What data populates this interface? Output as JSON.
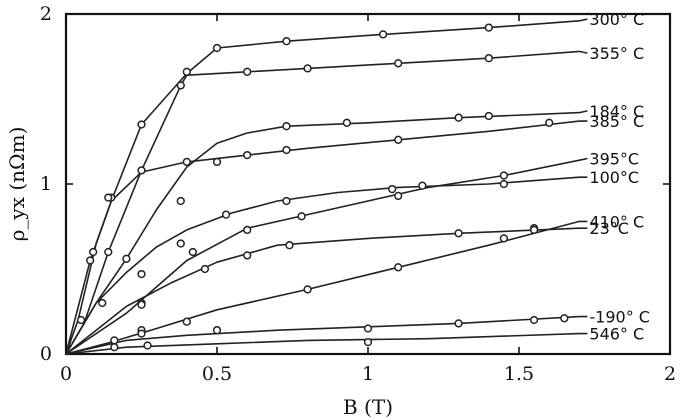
{
  "chart_data": {
    "type": "line",
    "title": "",
    "xlabel": "B (T)",
    "ylabel": "ρ_yx (nΩm)",
    "xlim": [
      0,
      2
    ],
    "ylim": [
      0,
      2
    ],
    "xticks": [
      {
        "value": 0,
        "label": "0"
      },
      {
        "value": 0.5,
        "label": "0.5"
      },
      {
        "value": 1,
        "label": "1"
      },
      {
        "value": 1.5,
        "label": "1.5"
      },
      {
        "value": 2,
        "label": "2"
      }
    ],
    "yticks": [
      {
        "value": 0,
        "label": "0"
      },
      {
        "value": 1,
        "label": "1"
      },
      {
        "value": 2,
        "label": "2"
      }
    ],
    "grid": false,
    "legend": "inline labels at right end of curves",
    "series": [
      {
        "name": "300° C",
        "label_y": 1.97,
        "points": [
          [
            0,
            0
          ],
          [
            0.08,
            0.55
          ],
          [
            0.15,
            0.9
          ],
          [
            0.25,
            1.35
          ],
          [
            0.4,
            1.65
          ],
          [
            0.5,
            1.8
          ],
          [
            0.73,
            1.84
          ],
          [
            1.05,
            1.88
          ],
          [
            1.4,
            1.92
          ],
          [
            1.7,
            1.96
          ]
        ],
        "markers": [
          [
            0.08,
            0.55
          ],
          [
            0.15,
            0.92
          ],
          [
            0.25,
            1.35
          ],
          [
            0.5,
            1.8
          ],
          [
            0.73,
            1.84
          ],
          [
            1.05,
            1.88
          ],
          [
            1.4,
            1.92
          ]
        ]
      },
      {
        "name": "355° C",
        "label_y": 1.77,
        "points": [
          [
            0,
            0
          ],
          [
            0.06,
            0.18
          ],
          [
            0.14,
            0.6
          ],
          [
            0.25,
            1.08
          ],
          [
            0.38,
            1.58
          ],
          [
            0.4,
            1.64
          ],
          [
            0.6,
            1.66
          ],
          [
            0.8,
            1.68
          ],
          [
            1.1,
            1.71
          ],
          [
            1.4,
            1.74
          ],
          [
            1.7,
            1.78
          ]
        ],
        "markers": [
          [
            0.14,
            0.6
          ],
          [
            0.25,
            1.08
          ],
          [
            0.38,
            1.58
          ],
          [
            0.4,
            1.66
          ],
          [
            0.6,
            1.66
          ],
          [
            0.8,
            1.68
          ],
          [
            1.1,
            1.71
          ],
          [
            1.4,
            1.74
          ]
        ]
      },
      {
        "name": "184° C",
        "label_y": 1.43,
        "points": [
          [
            0,
            0
          ],
          [
            0.1,
            0.3
          ],
          [
            0.2,
            0.56
          ],
          [
            0.3,
            0.85
          ],
          [
            0.4,
            1.1
          ],
          [
            0.5,
            1.24
          ],
          [
            0.6,
            1.3
          ],
          [
            0.73,
            1.34
          ],
          [
            1.0,
            1.36
          ],
          [
            1.3,
            1.39
          ],
          [
            1.7,
            1.42
          ]
        ],
        "markers": [
          [
            0.12,
            0.3
          ],
          [
            0.2,
            0.56
          ],
          [
            0.38,
            0.9
          ],
          [
            0.5,
            1.13
          ],
          [
            0.73,
            1.34
          ],
          [
            0.93,
            1.36
          ],
          [
            1.3,
            1.39
          ],
          [
            1.4,
            1.4
          ]
        ]
      },
      {
        "name": "385° C",
        "label_y": 1.37,
        "points": [
          [
            0,
            0
          ],
          [
            0.04,
            0.2
          ],
          [
            0.1,
            0.65
          ],
          [
            0.15,
            0.9
          ],
          [
            0.25,
            1.07
          ],
          [
            0.4,
            1.13
          ],
          [
            0.6,
            1.17
          ],
          [
            0.8,
            1.21
          ],
          [
            1.1,
            1.26
          ],
          [
            1.4,
            1.31
          ],
          [
            1.6,
            1.35
          ],
          [
            1.7,
            1.37
          ]
        ],
        "markers": [
          [
            0.05,
            0.2
          ],
          [
            0.09,
            0.6
          ],
          [
            0.14,
            0.92
          ],
          [
            0.4,
            1.13
          ],
          [
            0.6,
            1.17
          ],
          [
            0.73,
            1.2
          ],
          [
            1.1,
            1.26
          ],
          [
            1.6,
            1.36
          ]
        ]
      },
      {
        "name": "395°C",
        "label_y": 1.15,
        "points": [
          [
            0,
            0
          ],
          [
            0.2,
            0.24
          ],
          [
            0.4,
            0.55
          ],
          [
            0.6,
            0.74
          ],
          [
            0.8,
            0.82
          ],
          [
            1.0,
            0.9
          ],
          [
            1.2,
            0.98
          ],
          [
            1.45,
            1.05
          ],
          [
            1.7,
            1.14
          ]
        ],
        "markers": [
          [
            0.25,
            0.3
          ],
          [
            0.42,
            0.6
          ],
          [
            0.6,
            0.73
          ],
          [
            0.78,
            0.81
          ],
          [
            1.1,
            0.93
          ],
          [
            1.45,
            1.05
          ]
        ]
      },
      {
        "name": "100°C",
        "label_y": 1.04,
        "points": [
          [
            0,
            0
          ],
          [
            0.1,
            0.3
          ],
          [
            0.2,
            0.48
          ],
          [
            0.3,
            0.63
          ],
          [
            0.4,
            0.73
          ],
          [
            0.55,
            0.83
          ],
          [
            0.7,
            0.9
          ],
          [
            0.9,
            0.95
          ],
          [
            1.1,
            0.98
          ],
          [
            1.4,
            1.0
          ],
          [
            1.7,
            1.04
          ]
        ],
        "markers": [
          [
            0.25,
            0.47
          ],
          [
            0.38,
            0.65
          ],
          [
            0.53,
            0.82
          ],
          [
            0.73,
            0.9
          ],
          [
            1.08,
            0.97
          ],
          [
            1.18,
            0.99
          ],
          [
            1.45,
            1.0
          ]
        ]
      },
      {
        "name": "410° C",
        "label_y": 0.78,
        "points": [
          [
            0,
            0
          ],
          [
            0.15,
            0.07
          ],
          [
            0.3,
            0.15
          ],
          [
            0.5,
            0.26
          ],
          [
            0.8,
            0.38
          ],
          [
            1.1,
            0.51
          ],
          [
            1.4,
            0.64
          ],
          [
            1.7,
            0.78
          ]
        ],
        "markers": [
          [
            0.25,
            0.14
          ],
          [
            0.4,
            0.19
          ],
          [
            0.8,
            0.38
          ],
          [
            1.1,
            0.51
          ],
          [
            1.45,
            0.68
          ],
          [
            1.55,
            0.74
          ]
        ]
      },
      {
        "name": "23°C",
        "label_y": 0.74,
        "points": [
          [
            0,
            0
          ],
          [
            0.1,
            0.14
          ],
          [
            0.2,
            0.28
          ],
          [
            0.35,
            0.42
          ],
          [
            0.5,
            0.54
          ],
          [
            0.7,
            0.64
          ],
          [
            1.0,
            0.68
          ],
          [
            1.3,
            0.71
          ],
          [
            1.7,
            0.74
          ]
        ],
        "markers": [
          [
            0.25,
            0.29
          ],
          [
            0.46,
            0.5
          ],
          [
            0.6,
            0.58
          ],
          [
            0.74,
            0.64
          ],
          [
            1.3,
            0.71
          ],
          [
            1.55,
            0.73
          ]
        ]
      },
      {
        "name": "-190° C",
        "label_y": 0.22,
        "points": [
          [
            0,
            0
          ],
          [
            0.2,
            0.08
          ],
          [
            0.4,
            0.11
          ],
          [
            0.7,
            0.14
          ],
          [
            1.0,
            0.16
          ],
          [
            1.3,
            0.18
          ],
          [
            1.7,
            0.22
          ]
        ],
        "markers": [
          [
            0.16,
            0.08
          ],
          [
            0.25,
            0.12
          ],
          [
            0.5,
            0.14
          ],
          [
            1.0,
            0.15
          ],
          [
            1.3,
            0.18
          ],
          [
            1.55,
            0.2
          ],
          [
            1.65,
            0.21
          ]
        ]
      },
      {
        "name": "546° C",
        "label_y": 0.12,
        "points": [
          [
            0,
            0
          ],
          [
            0.2,
            0.04
          ],
          [
            0.5,
            0.06
          ],
          [
            0.8,
            0.08
          ],
          [
            1.2,
            0.09
          ],
          [
            1.7,
            0.12
          ]
        ],
        "markers": [
          [
            0.16,
            0.04
          ],
          [
            0.27,
            0.05
          ],
          [
            1.0,
            0.07
          ]
        ]
      }
    ]
  }
}
